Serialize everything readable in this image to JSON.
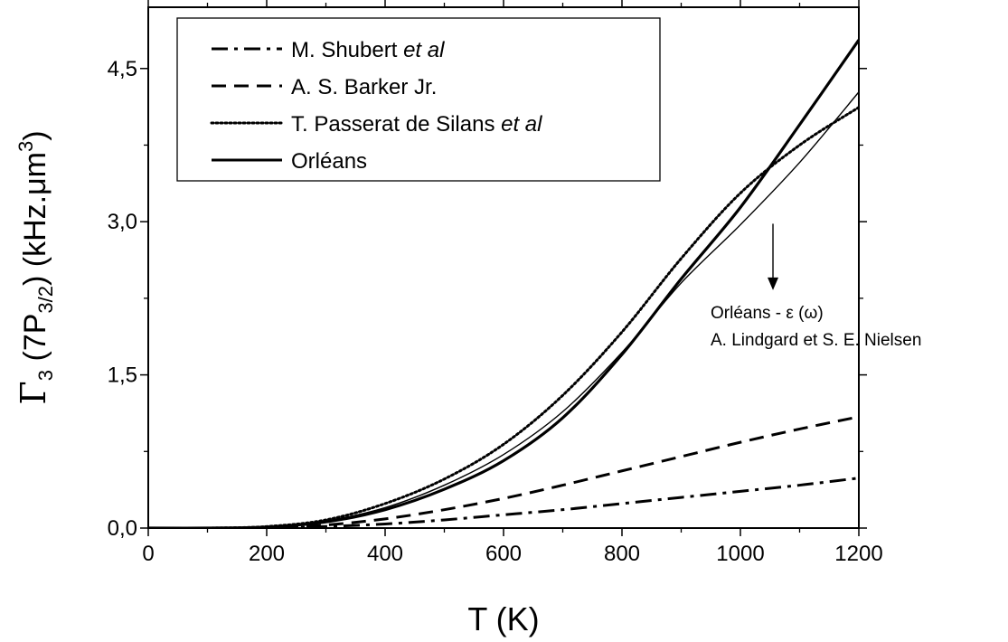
{
  "chart_data": {
    "type": "line",
    "xlabel": "T (K)",
    "ylabel": {
      "prefix": "Γ",
      "sub1": "3",
      "mid": " (7P",
      "sub2": "3/2",
      "suffix": ") (kHz.μm",
      "sup": "3",
      "end": ")"
    },
    "xlim": [
      0,
      1200
    ],
    "ylim": [
      0,
      5.1
    ],
    "xticks": [
      0,
      200,
      400,
      600,
      800,
      1000,
      1200
    ],
    "yticks": [
      0,
      1.5,
      3.0,
      4.5
    ],
    "xtick_labels": [
      "0",
      "200",
      "400",
      "600",
      "800",
      "1000",
      "1200"
    ],
    "ytick_labels": [
      "0,0",
      "1,5",
      "3,0",
      "4,5"
    ],
    "minor_x_step": 100,
    "minor_y_step": 0.75,
    "grid": false,
    "legend_position": "top-left",
    "legend": [
      {
        "label": "M. Shubert ",
        "label_italic": "et al",
        "style": "dashdot"
      },
      {
        "label": "A. S. Barker Jr.",
        "label_italic": "",
        "style": "dashed"
      },
      {
        "label": "T. Passerat de Silans ",
        "label_italic": "et al",
        "style": "dotted"
      },
      {
        "label": "Orléans",
        "label_italic": "",
        "style": "solid"
      }
    ],
    "annotation": {
      "line1": "Orléans - ε (ω)",
      "line2": "A. Lindgard et S. E. Nielsen",
      "arrow_from": [
        1055,
        2.98
      ],
      "arrow_to": [
        1055,
        2.33
      ]
    },
    "series": [
      {
        "name": "M. Shubert et al",
        "style": "dashdot",
        "width": 3,
        "x": [
          0,
          100,
          200,
          300,
          400,
          500,
          600,
          700,
          800,
          900,
          1000,
          1100,
          1200
        ],
        "y": [
          0.0,
          0.0,
          0.0,
          0.015,
          0.04,
          0.08,
          0.13,
          0.18,
          0.24,
          0.3,
          0.36,
          0.42,
          0.49
        ]
      },
      {
        "name": "A. S. Barker Jr.",
        "style": "dashed",
        "width": 3,
        "x": [
          0,
          100,
          200,
          300,
          400,
          500,
          600,
          700,
          800,
          900,
          1000,
          1100,
          1200
        ],
        "y": [
          0.0,
          0.0,
          0.0,
          0.03,
          0.09,
          0.18,
          0.29,
          0.42,
          0.56,
          0.7,
          0.84,
          0.97,
          1.09
        ]
      },
      {
        "name": "T. Passerat de Silans et al",
        "style": "dotted",
        "width": 3,
        "x": [
          0,
          100,
          200,
          300,
          400,
          500,
          600,
          700,
          800,
          900,
          1000,
          1100,
          1200
        ],
        "y": [
          0.0,
          0.0,
          0.015,
          0.08,
          0.24,
          0.48,
          0.82,
          1.3,
          1.92,
          2.64,
          3.28,
          3.75,
          4.12
        ]
      },
      {
        "name": "Orléans",
        "style": "solid",
        "width": 3.2,
        "x": [
          0,
          100,
          200,
          300,
          400,
          500,
          600,
          700,
          800,
          900,
          1000,
          1100,
          1200
        ],
        "y": [
          0.0,
          0.0,
          0.01,
          0.06,
          0.18,
          0.38,
          0.66,
          1.08,
          1.7,
          2.44,
          3.14,
          3.95,
          4.78
        ]
      },
      {
        "name": "Orléans - ε (ω) A. Lindgard et S. E. Nielsen",
        "style": "solid",
        "width": 1.4,
        "x": [
          0,
          100,
          200,
          300,
          400,
          500,
          600,
          700,
          800,
          900,
          1000,
          1100,
          1200
        ],
        "y": [
          0.0,
          0.0,
          0.01,
          0.07,
          0.2,
          0.42,
          0.72,
          1.14,
          1.72,
          2.4,
          2.97,
          3.58,
          4.27
        ]
      }
    ]
  }
}
